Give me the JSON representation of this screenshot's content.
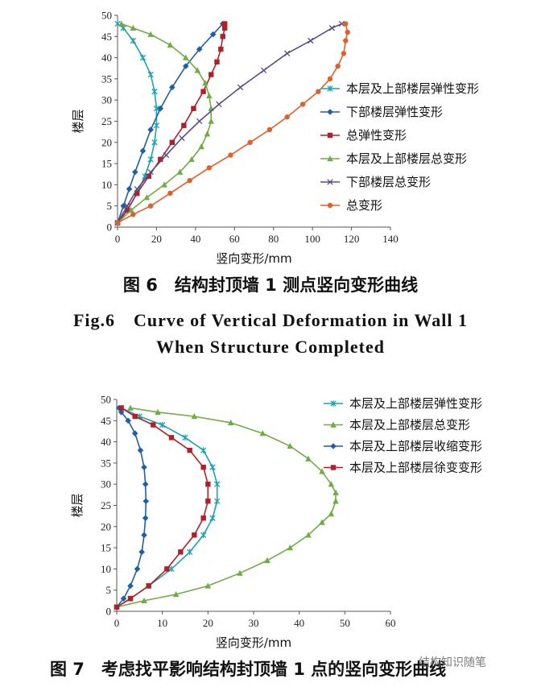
{
  "chart_data": [
    {
      "type": "line",
      "title": "",
      "xlabel": "竖向变形/mm",
      "ylabel": "楼层",
      "xlim": [
        0,
        140
      ],
      "ylim": [
        0,
        50
      ],
      "xticks": [
        0,
        20,
        40,
        60,
        80,
        100,
        120,
        140
      ],
      "yticks": [
        0,
        5,
        10,
        15,
        20,
        25,
        30,
        35,
        40,
        45,
        50
      ],
      "grid": false,
      "legend_position": "right",
      "series": [
        {
          "name": "本层及上部楼层弹性变形",
          "color": "#1aa3b0",
          "marker": "star",
          "points": [
            [
              0,
              1
            ],
            [
              5,
              4
            ],
            [
              10,
              8
            ],
            [
              14,
              12
            ],
            [
              17,
              16
            ],
            [
              19,
              20
            ],
            [
              20,
              24
            ],
            [
              20,
              28
            ],
            [
              19,
              32
            ],
            [
              17,
              36
            ],
            [
              13,
              40
            ],
            [
              8,
              44
            ],
            [
              3,
              47
            ],
            [
              0,
              48
            ]
          ]
        },
        {
          "name": "下部楼层弹性变形",
          "color": "#1f5ea8",
          "marker": "diamond",
          "points": [
            [
              0,
              1
            ],
            [
              3,
              5
            ],
            [
              6,
              9
            ],
            [
              9,
              13
            ],
            [
              13,
              18
            ],
            [
              17,
              23
            ],
            [
              22,
              28
            ],
            [
              28,
              33
            ],
            [
              35,
              38
            ],
            [
              42,
              42
            ],
            [
              49,
              45.5
            ],
            [
              54,
              48
            ]
          ]
        },
        {
          "name": "总弹性变形",
          "color": "#b0202a",
          "marker": "square",
          "points": [
            [
              0,
              1
            ],
            [
              5,
              4
            ],
            [
              10,
              8
            ],
            [
              16,
              12
            ],
            [
              22,
              16
            ],
            [
              28,
              20
            ],
            [
              34,
              24
            ],
            [
              39,
              28
            ],
            [
              44,
              32
            ],
            [
              48,
              36
            ],
            [
              51,
              39
            ],
            [
              53,
              42
            ],
            [
              54,
              45
            ],
            [
              55,
              47
            ],
            [
              55,
              48
            ]
          ]
        },
        {
          "name": "本层及上部楼层总变形",
          "color": "#6fac46",
          "marker": "triangle",
          "points": [
            [
              0,
              1
            ],
            [
              7,
              4
            ],
            [
              15,
              7
            ],
            [
              24,
              10
            ],
            [
              32,
              13
            ],
            [
              38,
              16
            ],
            [
              43,
              19
            ],
            [
              46,
              22
            ],
            [
              48,
              25
            ],
            [
              48,
              28
            ],
            [
              47,
              31
            ],
            [
              45,
              34
            ],
            [
              41,
              37
            ],
            [
              35,
              40
            ],
            [
              27,
              43
            ],
            [
              17,
              45.5
            ],
            [
              8,
              47
            ],
            [
              2,
              48
            ]
          ]
        },
        {
          "name": "下部楼层总变形",
          "color": "#5b4a8a",
          "marker": "x",
          "points": [
            [
              0,
              1
            ],
            [
              5,
              5
            ],
            [
              10,
              9
            ],
            [
              17,
              13
            ],
            [
              25,
              17
            ],
            [
              33,
              21
            ],
            [
              42,
              25
            ],
            [
              52,
              29
            ],
            [
              63,
              33
            ],
            [
              75,
              37
            ],
            [
              87,
              41
            ],
            [
              99,
              44
            ],
            [
              110,
              47
            ],
            [
              115,
              48
            ]
          ]
        },
        {
          "name": "总变形",
          "color": "#e0602a",
          "marker": "circle",
          "points": [
            [
              0,
              1
            ],
            [
              8,
              3
            ],
            [
              17,
              5
            ],
            [
              27,
              8
            ],
            [
              37,
              11
            ],
            [
              47,
              14
            ],
            [
              58,
              17
            ],
            [
              68,
              20
            ],
            [
              78,
              23
            ],
            [
              87,
              26
            ],
            [
              95,
              29
            ],
            [
              103,
              32
            ],
            [
              109,
              35
            ],
            [
              113,
              38
            ],
            [
              116,
              41
            ],
            [
              117,
              44
            ],
            [
              118,
              46
            ],
            [
              117,
              48
            ]
          ]
        }
      ]
    },
    {
      "type": "line",
      "title": "",
      "xlabel": "竖向变形/mm",
      "ylabel": "楼层",
      "xlim": [
        0,
        60
      ],
      "ylim": [
        0,
        50
      ],
      "xticks": [
        0,
        10,
        20,
        30,
        40,
        50,
        60
      ],
      "yticks": [
        0,
        5,
        10,
        15,
        20,
        25,
        30,
        35,
        40,
        45,
        50
      ],
      "grid": false,
      "legend_position": "top-right",
      "series": [
        {
          "name": "本层及上部楼层弹性变形",
          "color": "#1aa3b0",
          "marker": "star",
          "points": [
            [
              0,
              1
            ],
            [
              3,
              3
            ],
            [
              7,
              6
            ],
            [
              12,
              10
            ],
            [
              16,
              14
            ],
            [
              19,
              18
            ],
            [
              21,
              22
            ],
            [
              22,
              26
            ],
            [
              22,
              30
            ],
            [
              21,
              34
            ],
            [
              19,
              38
            ],
            [
              15,
              41
            ],
            [
              10,
              44
            ],
            [
              5,
              46
            ],
            [
              1,
              48
            ]
          ]
        },
        {
          "name": "本层及上部楼层总变形",
          "color": "#6fac46",
          "marker": "triangle",
          "points": [
            [
              0,
              1
            ],
            [
              6,
              2.5
            ],
            [
              13,
              4
            ],
            [
              20,
              6
            ],
            [
              27,
              9
            ],
            [
              33,
              12
            ],
            [
              38,
              15
            ],
            [
              42,
              18
            ],
            [
              45,
              21
            ],
            [
              47,
              23
            ],
            [
              48,
              26
            ],
            [
              48,
              28
            ],
            [
              47,
              30
            ],
            [
              45,
              33
            ],
            [
              42,
              36
            ],
            [
              38,
              39
            ],
            [
              32,
              42
            ],
            [
              25,
              44.5
            ],
            [
              17,
              46
            ],
            [
              9,
              47
            ],
            [
              3,
              48
            ]
          ]
        },
        {
          "name": "本层及上部楼层收缩变形",
          "color": "#1f5ea8",
          "marker": "diamond",
          "points": [
            [
              0,
              1
            ],
            [
              1.5,
              3
            ],
            [
              3,
              6
            ],
            [
              4.5,
              10
            ],
            [
              5.5,
              14
            ],
            [
              6,
              18
            ],
            [
              6.3,
              22
            ],
            [
              6.4,
              26
            ],
            [
              6.3,
              30
            ],
            [
              6,
              34
            ],
            [
              5.2,
              38
            ],
            [
              4,
              42
            ],
            [
              2.5,
              45
            ],
            [
              1,
              47
            ],
            [
              0.5,
              48
            ]
          ]
        },
        {
          "name": "本层及上部楼层徐变变形",
          "color": "#b0202a",
          "marker": "square",
          "points": [
            [
              0,
              1
            ],
            [
              3,
              3
            ],
            [
              7,
              6
            ],
            [
              11,
              10
            ],
            [
              14,
              14
            ],
            [
              17,
              18
            ],
            [
              19,
              22
            ],
            [
              20,
              26
            ],
            [
              20,
              30
            ],
            [
              19,
              34
            ],
            [
              16,
              38
            ],
            [
              12,
              41
            ],
            [
              8,
              44
            ],
            [
              4,
              46
            ],
            [
              1,
              48
            ]
          ]
        }
      ]
    }
  ],
  "captions": {
    "fig6_cn": "图 6　结构封顶墙 1 测点竖向变形曲线",
    "fig6_en_line1": "Fig.6　Curve of Vertical Deformation in Wall 1",
    "fig6_en_line2": "When Structure Completed",
    "fig7_cn": "图 7　考虑找平影响结构封顶墙 1 点的竖向变形曲线"
  },
  "watermark": "结构知识随笔"
}
